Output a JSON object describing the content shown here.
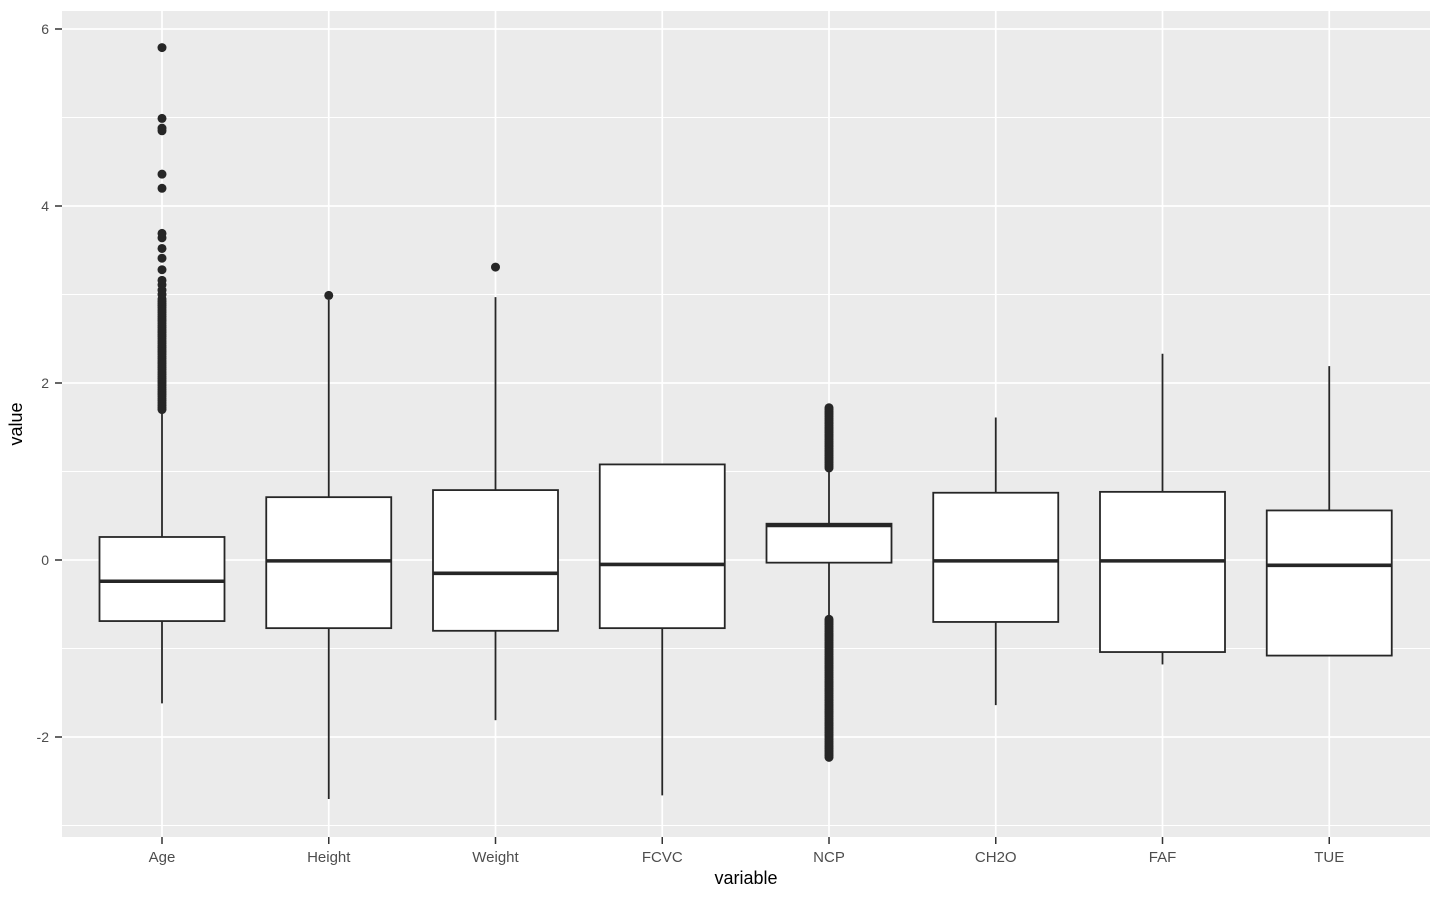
{
  "figure": {
    "kind": "ggplot-style boxplot",
    "background": "#FFFFFF"
  },
  "colors": {
    "panel_background": "#EBEBEB",
    "gridline": "#FFFFFF",
    "box_fill": "#FFFFFF",
    "box_stroke": "#262626",
    "outlier_fill": "#262626",
    "tick_mark": "#333333",
    "tick_label": "#4D4D4D",
    "axis_title": "#000000"
  },
  "chart_data": {
    "type": "boxplot",
    "title": "",
    "xlabel": "variable",
    "ylabel": "value",
    "grid": true,
    "legend": "none",
    "ylim": [
      -3.13,
      6.2
    ],
    "y_ticks": [
      {
        "value": 6,
        "label": "6"
      },
      {
        "value": 4,
        "label": "4"
      },
      {
        "value": 2,
        "label": "2"
      },
      {
        "value": 0,
        "label": "0"
      },
      {
        "value": -2,
        "label": "-2"
      }
    ],
    "y_major_gridlines": [
      6,
      4,
      2,
      0,
      -2
    ],
    "y_minor_gridlines": [
      5,
      3,
      1,
      -1,
      -3
    ],
    "categories": [
      "Age",
      "Height",
      "Weight",
      "FCVC",
      "NCP",
      "CH2O",
      "FAF",
      "TUE"
    ],
    "series": [
      {
        "name": "Age",
        "whisker_low": -1.62,
        "q1": -0.69,
        "median": -0.24,
        "q3": 0.26,
        "whisker_high": 1.67,
        "outliers": [
          3.0,
          3.05,
          3.11,
          3.16,
          3.28,
          3.41,
          3.52,
          3.64,
          3.69,
          4.2,
          4.36,
          4.85,
          4.88,
          4.99,
          5.79
        ],
        "outlier_clusters": [
          {
            "from": 1.7,
            "to": 2.95,
            "step": 0.025
          }
        ]
      },
      {
        "name": "Height",
        "whisker_low": -2.7,
        "q1": -0.77,
        "median": -0.01,
        "q3": 0.71,
        "whisker_high": 2.94,
        "outliers": [
          2.99
        ],
        "outlier_clusters": []
      },
      {
        "name": "Weight",
        "whisker_low": -1.81,
        "q1": -0.8,
        "median": -0.15,
        "q3": 0.79,
        "whisker_high": 2.97,
        "outliers": [
          3.31
        ],
        "outlier_clusters": []
      },
      {
        "name": "FCVC",
        "whisker_low": -2.66,
        "q1": -0.77,
        "median": -0.05,
        "q3": 1.08,
        "whisker_high": 1.08,
        "outliers": [],
        "outlier_clusters": []
      },
      {
        "name": "NCP",
        "whisker_low": -0.66,
        "q1": -0.03,
        "median": 0.39,
        "q3": 0.41,
        "whisker_high": 1.04,
        "outliers": [],
        "outlier_clusters": [
          {
            "from": 1.04,
            "to": 1.73,
            "step": 0.02
          },
          {
            "from": -2.23,
            "to": -0.66,
            "step": 0.02
          }
        ]
      },
      {
        "name": "CH2O",
        "whisker_low": -1.64,
        "q1": -0.7,
        "median": -0.01,
        "q3": 0.76,
        "whisker_high": 1.61,
        "outliers": [],
        "outlier_clusters": []
      },
      {
        "name": "FAF",
        "whisker_low": -1.18,
        "q1": -1.04,
        "median": -0.01,
        "q3": 0.77,
        "whisker_high": 2.33,
        "outliers": [],
        "outlier_clusters": []
      },
      {
        "name": "TUE",
        "whisker_low": -1.08,
        "q1": -1.08,
        "median": -0.06,
        "q3": 0.56,
        "whisker_high": 2.19,
        "outliers": [],
        "outlier_clusters": []
      }
    ]
  }
}
